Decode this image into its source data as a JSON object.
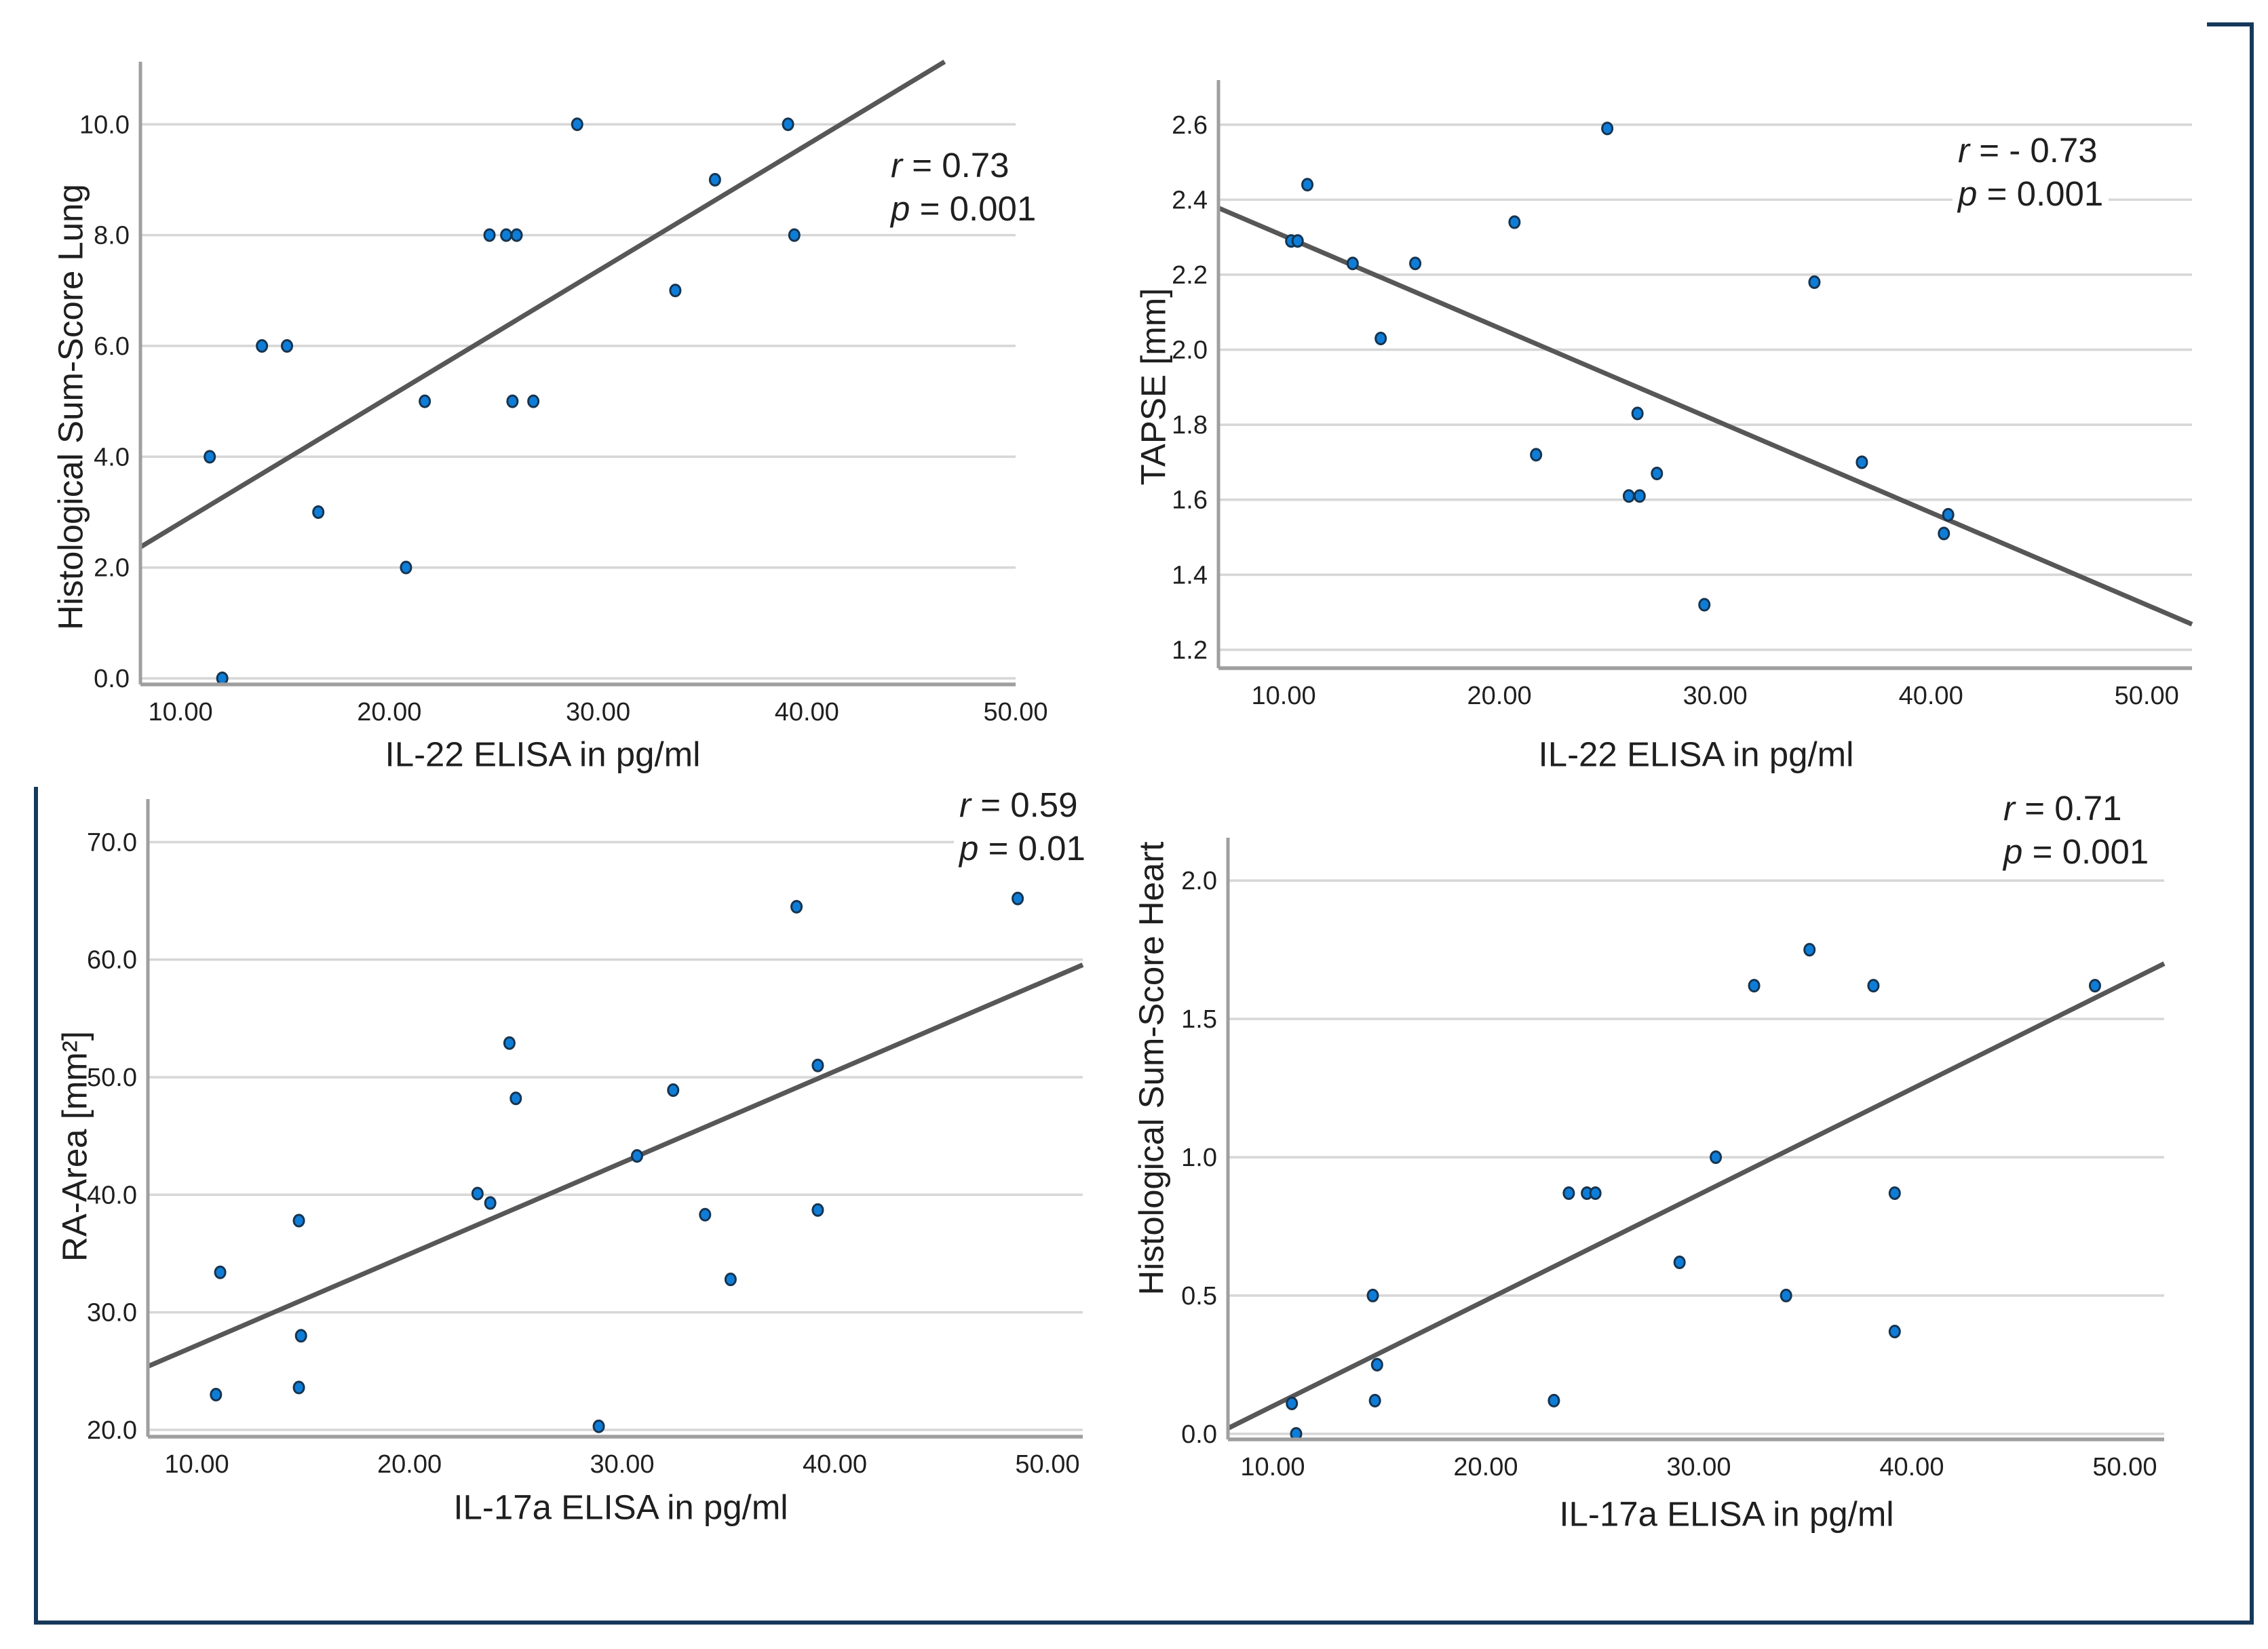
{
  "style": {
    "background": "#ffffff",
    "dot_fill": "#0e7dd8",
    "dot_stroke": "#16344f",
    "fit_line_color": "#575757",
    "gridline_color": "#d7d7d7",
    "axis_color": "#9f9f9f",
    "text_color": "#1f1f1f",
    "figure_border_color": "#16395b"
  },
  "chart_data": [
    {
      "id": "lung",
      "type": "scatter",
      "xlabel": "IL-22 ELISA in pg/ml",
      "ylabel": "Histological Sum-Score Lung",
      "xlim": [
        8.08,
        50.0
      ],
      "ylim": [
        -0.11,
        11.13
      ],
      "xticks": [
        10,
        20,
        30,
        40,
        50
      ],
      "xtick_labels": [
        "10.00",
        "20.00",
        "30.00",
        "40.00",
        "50.00"
      ],
      "yticks": [
        0,
        2,
        4,
        6,
        8,
        10
      ],
      "ytick_labels": [
        "0.0",
        "2.0",
        "4.0",
        "6.0",
        "8.0",
        "10.0"
      ],
      "grid": true,
      "legend": "none",
      "points": [
        [
          12.0,
          0.0
        ],
        [
          11.4,
          4.0
        ],
        [
          13.9,
          6.0
        ],
        [
          15.1,
          6.0
        ],
        [
          16.6,
          3.0
        ],
        [
          20.8,
          2.0
        ],
        [
          21.7,
          5.0
        ],
        [
          25.9,
          5.0
        ],
        [
          26.9,
          5.0
        ],
        [
          24.8,
          8.0
        ],
        [
          25.6,
          8.0
        ],
        [
          26.1,
          8.0
        ],
        [
          29.0,
          10.0
        ],
        [
          33.7,
          7.0
        ],
        [
          35.6,
          9.0
        ],
        [
          39.1,
          10.0
        ],
        [
          39.4,
          8.0
        ]
      ],
      "fit_line": [
        [
          8.08,
          2.37
        ],
        [
          46.6,
          11.13
        ]
      ],
      "annotation": {
        "r_sym": "r",
        "r_val": "= 0.73",
        "p_sym": "p",
        "p_val": "= 0.001"
      }
    },
    {
      "id": "tapse",
      "type": "scatter",
      "xlabel": "IL-22 ELISA in pg/ml",
      "ylabel": "TAPSE [mm]",
      "xlim": [
        6.98,
        52.1
      ],
      "ylim": [
        1.151,
        2.719
      ],
      "xticks": [
        10,
        20,
        30,
        40,
        50
      ],
      "xtick_labels": [
        "10.00",
        "20.00",
        "30.00",
        "40.00",
        "50.00"
      ],
      "yticks": [
        1.2,
        1.4,
        1.6,
        1.8,
        2.0,
        2.2,
        2.4,
        2.6
      ],
      "ytick_labels": [
        "1.2",
        "1.4",
        "1.6",
        "1.8",
        "2.0",
        "2.2",
        "2.4",
        "2.6"
      ],
      "grid": true,
      "legend": "none",
      "points": [
        [
          10.35,
          2.29
        ],
        [
          10.65,
          2.29
        ],
        [
          11.1,
          2.44
        ],
        [
          13.2,
          2.23
        ],
        [
          16.1,
          2.23
        ],
        [
          14.5,
          2.03
        ],
        [
          20.7,
          2.34
        ],
        [
          21.7,
          1.72
        ],
        [
          25.0,
          2.59
        ],
        [
          26.4,
          1.83
        ],
        [
          26.0,
          1.61
        ],
        [
          26.5,
          1.61
        ],
        [
          27.3,
          1.67
        ],
        [
          29.5,
          1.32
        ],
        [
          34.6,
          2.18
        ],
        [
          36.8,
          1.7
        ],
        [
          40.6,
          1.51
        ],
        [
          40.8,
          1.56
        ]
      ],
      "fit_line": [
        [
          6.98,
          2.378
        ],
        [
          52.1,
          1.268
        ]
      ],
      "annotation": {
        "r_sym": "r",
        "r_val": "= - 0.73",
        "p_sym": "p",
        "p_val": "= 0.001"
      }
    },
    {
      "id": "ra_area",
      "type": "scatter",
      "xlabel": "IL-17a ELISA in pg/ml",
      "ylabel": "RA-Area [mm²]",
      "xlim": [
        7.7,
        51.66
      ],
      "ylim": [
        19.42,
        73.66
      ],
      "xticks": [
        10,
        20,
        30,
        40,
        50
      ],
      "xtick_labels": [
        "10.00",
        "20.00",
        "30.00",
        "40.00",
        "50.00"
      ],
      "yticks": [
        20,
        30,
        40,
        50,
        60,
        70
      ],
      "ytick_labels": [
        "20.0",
        "30.0",
        "40.0",
        "50.0",
        "60.0",
        "70.0"
      ],
      "grid": true,
      "legend": "none",
      "points": [
        [
          11.1,
          33.4
        ],
        [
          10.9,
          23.0
        ],
        [
          14.8,
          37.8
        ],
        [
          14.9,
          28.0
        ],
        [
          14.8,
          23.6
        ],
        [
          23.2,
          40.1
        ],
        [
          23.8,
          39.3
        ],
        [
          24.7,
          52.9
        ],
        [
          25.0,
          48.2
        ],
        [
          28.9,
          20.3
        ],
        [
          30.7,
          43.3
        ],
        [
          32.4,
          48.9
        ],
        [
          33.9,
          38.3
        ],
        [
          35.1,
          32.8
        ],
        [
          38.2,
          64.5
        ],
        [
          39.2,
          51.0
        ],
        [
          39.2,
          38.7
        ],
        [
          48.6,
          65.2
        ]
      ],
      "fit_line": [
        [
          7.7,
          25.4
        ],
        [
          51.66,
          59.56
        ]
      ],
      "annotation": {
        "r_sym": "r",
        "r_val": "= 0.59",
        "p_sym": "p",
        "p_val": "= 0.01"
      }
    },
    {
      "id": "heart",
      "type": "scatter",
      "xlabel": "IL-17a ELISA in pg/ml",
      "ylabel": "Histological Sum-Score Heart",
      "xlim": [
        7.9,
        51.85
      ],
      "ylim": [
        -0.02,
        2.155
      ],
      "xticks": [
        10,
        20,
        30,
        40,
        50
      ],
      "xtick_labels": [
        "10.00",
        "20.00",
        "30.00",
        "40.00",
        "50.00"
      ],
      "yticks": [
        0.0,
        0.5,
        1.0,
        1.5,
        2.0
      ],
      "ytick_labels": [
        "0.0",
        "0.5",
        "1.0",
        "1.5",
        "2.0"
      ],
      "grid": true,
      "legend": "none",
      "points": [
        [
          10.9,
          0.11
        ],
        [
          11.1,
          0.0
        ],
        [
          14.7,
          0.5
        ],
        [
          14.9,
          0.25
        ],
        [
          14.8,
          0.12
        ],
        [
          23.2,
          0.12
        ],
        [
          23.9,
          0.87
        ],
        [
          24.75,
          0.87
        ],
        [
          25.15,
          0.87
        ],
        [
          29.1,
          0.62
        ],
        [
          30.8,
          1.0
        ],
        [
          32.6,
          1.62
        ],
        [
          34.1,
          0.5
        ],
        [
          35.2,
          1.75
        ],
        [
          38.2,
          1.62
        ],
        [
          39.2,
          0.87
        ],
        [
          39.2,
          0.37
        ],
        [
          48.6,
          1.62
        ]
      ],
      "fit_line": [
        [
          7.9,
          0.02
        ],
        [
          51.85,
          1.7
        ]
      ],
      "annotation": {
        "r_sym": "r",
        "r_val": "= 0.71",
        "p_sym": "p",
        "p_val": "= 0.001"
      }
    }
  ]
}
